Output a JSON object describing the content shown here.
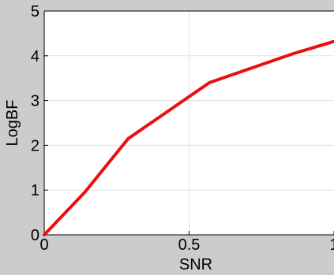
{
  "chart_data": {
    "type": "line",
    "title": "",
    "xlabel": "SNR",
    "ylabel": "LogBF",
    "xlim": [
      0,
      1
    ],
    "ylim": [
      0,
      5
    ],
    "xticks": [
      0,
      0.5,
      1
    ],
    "xtick_labels": [
      "0",
      "0.5",
      "1"
    ],
    "yticks": [
      0,
      1,
      2,
      3,
      4,
      5
    ],
    "ytick_labels": [
      "0",
      "1",
      "2",
      "3",
      "4",
      "5"
    ],
    "grid": true,
    "legend": "none",
    "colors": {
      "series": "#e81010",
      "axes_background": "#ffffff",
      "figure_background": "#cccccc",
      "grid": "#e0e0e0"
    },
    "series": [
      {
        "x": [
          0,
          0.14,
          0.29,
          0.57,
          0.86,
          1.0
        ],
        "y": [
          0,
          0.95,
          2.15,
          3.4,
          4.05,
          4.32
        ]
      }
    ]
  }
}
